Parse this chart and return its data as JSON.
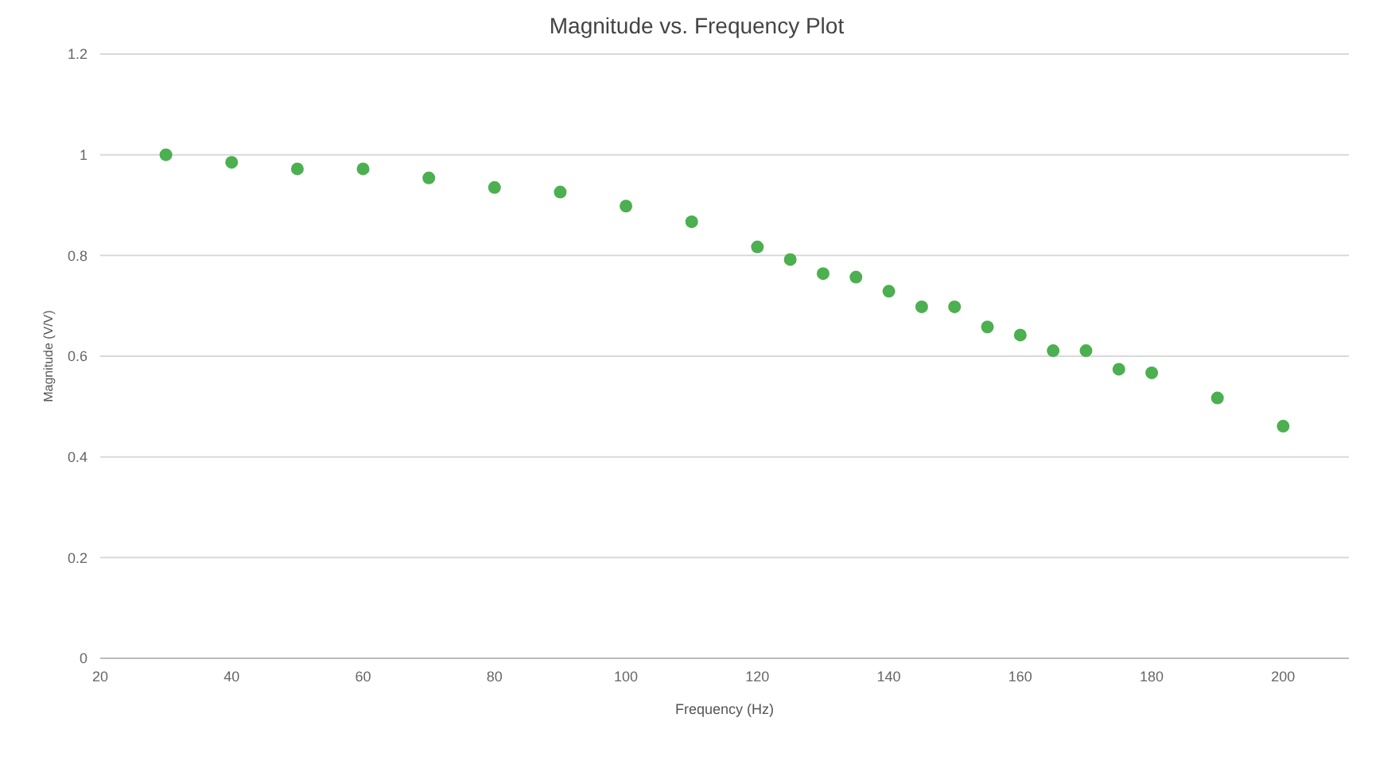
{
  "chart_data": {
    "type": "scatter",
    "title": "Magnitude vs. Frequency Plot",
    "xlabel": "Frequency (Hz)",
    "ylabel": "Magnitude (V/V)",
    "x": [
      30,
      40,
      50,
      60,
      70,
      80,
      90,
      100,
      110,
      120,
      125,
      130,
      135,
      140,
      145,
      150,
      155,
      160,
      165,
      170,
      175,
      180,
      190,
      200
    ],
    "series": [
      {
        "color": "#4caf50",
        "values": [
          1.0,
          0.985,
          0.972,
          0.972,
          0.954,
          0.935,
          0.926,
          0.898,
          0.867,
          0.817,
          0.792,
          0.764,
          0.757,
          0.729,
          0.698,
          0.698,
          0.658,
          0.642,
          0.611,
          0.611,
          0.574,
          0.567,
          0.517,
          0.461
        ]
      }
    ],
    "xlim": [
      20,
      210
    ],
    "xticks": [
      20,
      40,
      60,
      80,
      100,
      120,
      140,
      160,
      180,
      200
    ],
    "ylim": [
      0,
      1.2
    ],
    "yticks": [
      0,
      0.2,
      0.4,
      0.6,
      0.8,
      1,
      1.2
    ],
    "grid": "y",
    "marker": "circle"
  }
}
